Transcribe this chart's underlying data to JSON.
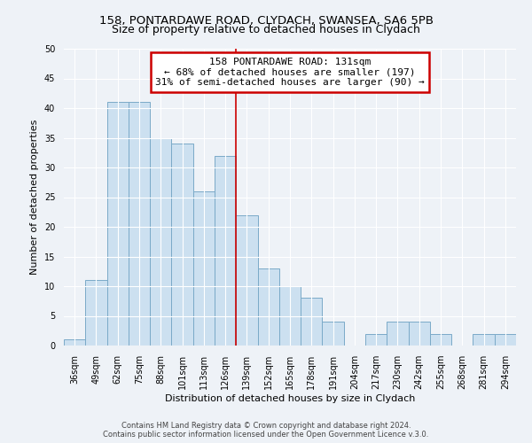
{
  "title1": "158, PONTARDAWE ROAD, CLYDACH, SWANSEA, SA6 5PB",
  "title2": "Size of property relative to detached houses in Clydach",
  "xlabel": "Distribution of detached houses by size in Clydach",
  "ylabel": "Number of detached properties",
  "bar_labels": [
    "36sqm",
    "49sqm",
    "62sqm",
    "75sqm",
    "88sqm",
    "101sqm",
    "113sqm",
    "126sqm",
    "139sqm",
    "152sqm",
    "165sqm",
    "178sqm",
    "191sqm",
    "204sqm",
    "217sqm",
    "230sqm",
    "242sqm",
    "255sqm",
    "268sqm",
    "281sqm",
    "294sqm"
  ],
  "bar_values": [
    1,
    11,
    41,
    41,
    35,
    34,
    26,
    32,
    22,
    13,
    10,
    8,
    4,
    0,
    2,
    4,
    4,
    2,
    0,
    2,
    2
  ],
  "bar_color": "#cce0f0",
  "bar_edge_color": "#7aaac8",
  "vline_x_index": 7,
  "vline_color": "#cc0000",
  "annotation_title": "158 PONTARDAWE ROAD: 131sqm",
  "annotation_line1": "← 68% of detached houses are smaller (197)",
  "annotation_line2": "31% of semi-detached houses are larger (90) →",
  "annotation_box_color": "#ffffff",
  "annotation_box_edge": "#cc0000",
  "ylim": [
    0,
    50
  ],
  "yticks": [
    0,
    5,
    10,
    15,
    20,
    25,
    30,
    35,
    40,
    45,
    50
  ],
  "footer1": "Contains HM Land Registry data © Crown copyright and database right 2024.",
  "footer2": "Contains public sector information licensed under the Open Government Licence v.3.0.",
  "bg_color": "#eef2f7",
  "plot_bg_color": "#eef2f7",
  "grid_color": "#ffffff",
  "title1_fontsize": 9.5,
  "title2_fontsize": 9,
  "label_fontsize": 8,
  "tick_fontsize": 7,
  "footer_fontsize": 6
}
